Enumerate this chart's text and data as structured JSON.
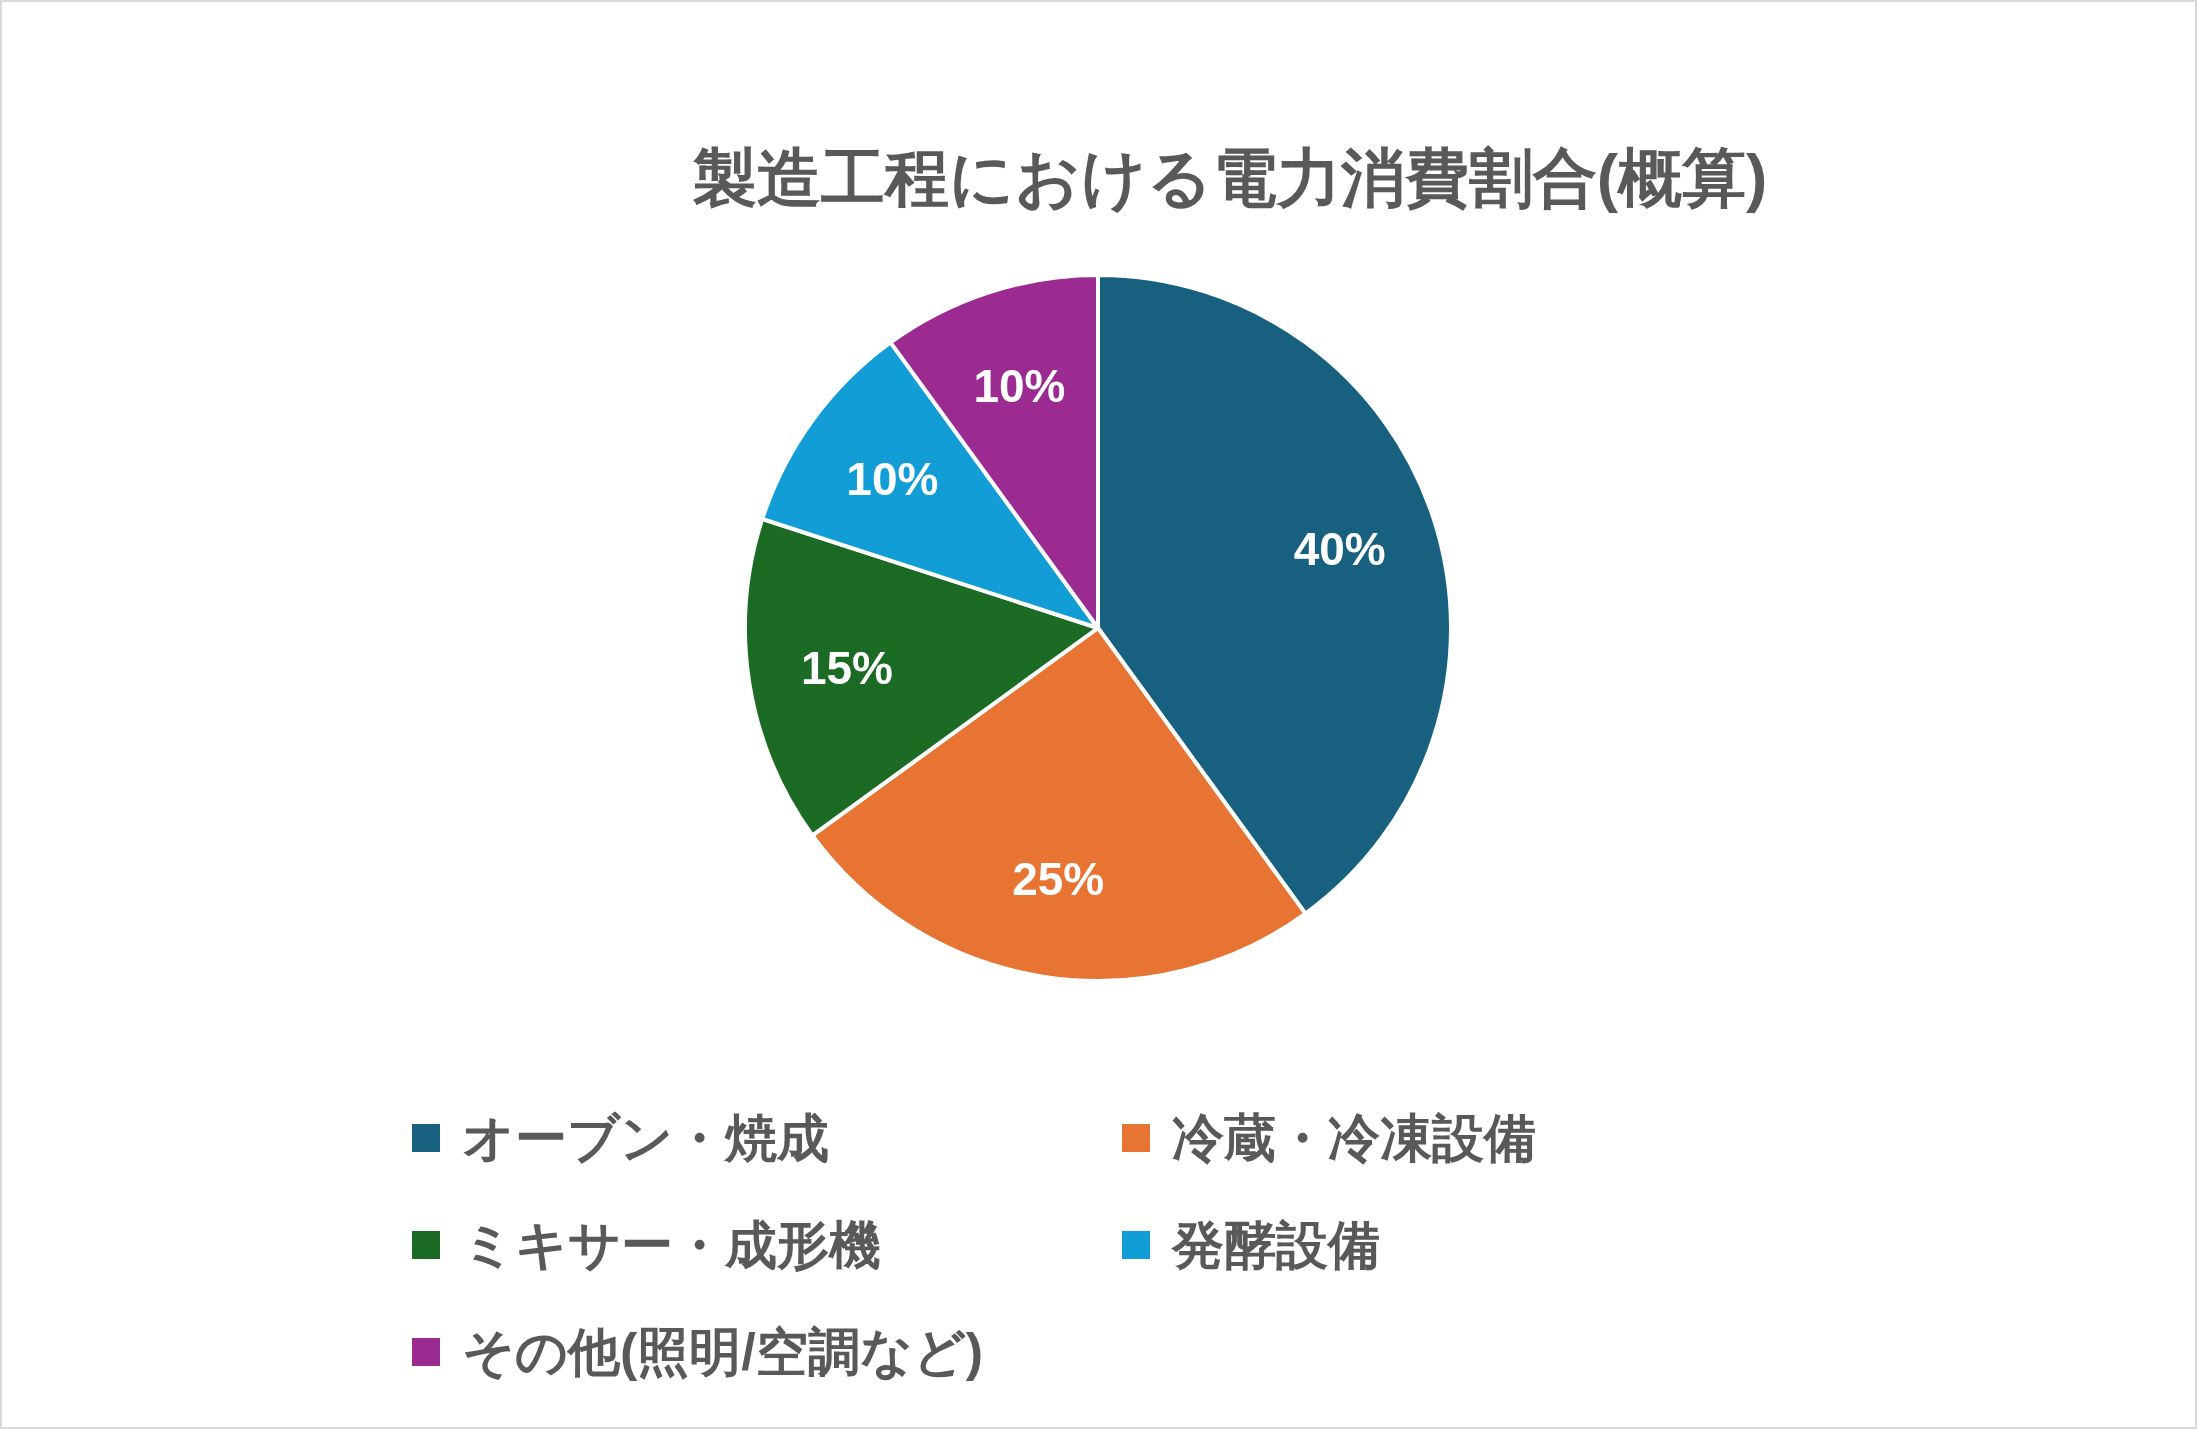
{
  "chart_data": {
    "type": "pie",
    "title": "製造工程における電力消費割合(概算)",
    "categories": [
      "オーブン・焼成",
      "冷蔵・冷凍設備",
      "ミキサー・成形機",
      "発酵設備",
      "その他(照明/空調など)"
    ],
    "values": [
      40,
      25,
      15,
      10,
      10
    ],
    "colors": [
      "#17607f",
      "#e87433",
      "#1b6b25",
      "#129dd6",
      "#9b2a91"
    ],
    "value_labels": [
      "40%",
      "25%",
      "15%",
      "10%",
      "10%"
    ],
    "legend": "bottom"
  }
}
